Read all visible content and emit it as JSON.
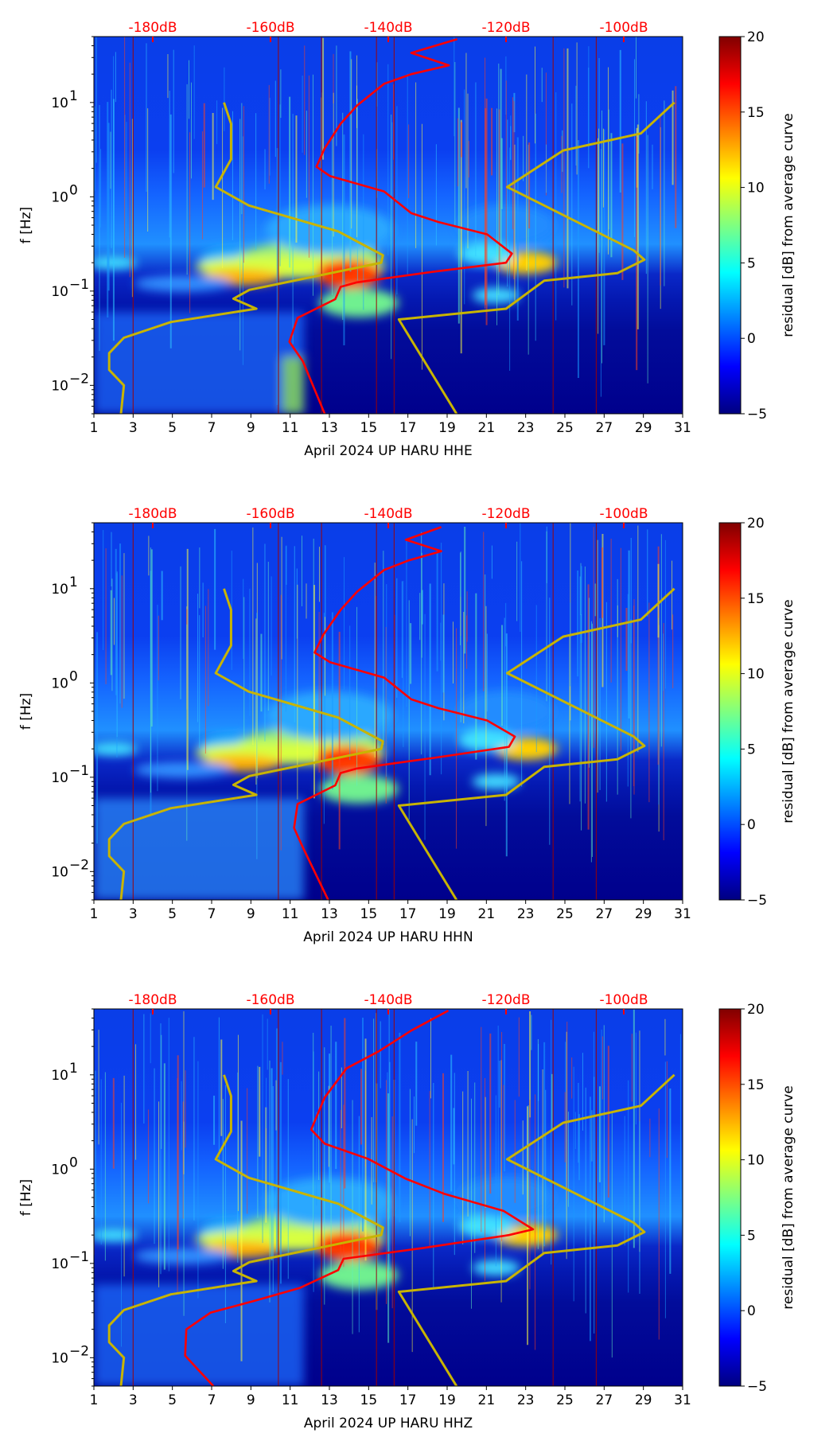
{
  "colors": {
    "nlnm": "#c8b400",
    "average": "#ff0000",
    "db_axis": "#ff0000"
  },
  "chart_data": [
    {
      "type": "heatmap",
      "title": "",
      "xlabel": "April 2024 UP HARU  HHE",
      "ylabel": "f [Hz]",
      "xlim": [
        1,
        31
      ],
      "xticks": [
        "1",
        "3",
        "5",
        "7",
        "9",
        "11",
        "13",
        "15",
        "17",
        "19",
        "21",
        "23",
        "25",
        "27",
        "29",
        "31"
      ],
      "yscale": "log",
      "ylim": [
        0.005,
        50
      ],
      "yticks": [
        {
          "value": 0.01,
          "base": "10",
          "exp": "−2"
        },
        {
          "value": 0.1,
          "base": "10",
          "exp": "−1"
        },
        {
          "value": 1,
          "base": "10",
          "exp": "0"
        },
        {
          "value": 10,
          "base": "10",
          "exp": "1"
        }
      ],
      "top_axis": {
        "unit": "dB",
        "ticks": [
          "-180dB",
          "-160dB",
          "-140dB",
          "-120dB",
          "-100dB"
        ],
        "values": [
          -180,
          -160,
          -140,
          -120,
          -100
        ]
      },
      "colorbar": {
        "label": "residual [dB] from average curve",
        "range": [
          -5,
          20
        ],
        "ticks": [
          "−5",
          "0",
          "5",
          "10",
          "15",
          "20"
        ],
        "colormap": "jet"
      },
      "series": [
        {
          "name": "low noise model",
          "points_freq_db": [
            [
              10,
              -167.9
            ],
            [
              5.96,
              -166.7
            ],
            [
              2.5,
              -166.7
            ],
            [
              1.27,
              -169.3
            ],
            [
              0.81,
              -163.7
            ],
            [
              0.43,
              -148.5
            ],
            [
              0.24,
              -140.9
            ],
            [
              0.2,
              -141.2
            ],
            [
              0.103,
              -163.6
            ],
            [
              0.083,
              -166.3
            ],
            [
              0.065,
              -162.4
            ],
            [
              0.047,
              -176.9
            ],
            [
              0.032,
              -184.9
            ],
            [
              0.022,
              -187.4
            ],
            [
              0.0146,
              -187.4
            ],
            [
              0.01,
              -184.9
            ],
            [
              0.005,
              -185.4
            ]
          ]
        },
        {
          "name": "high noise model",
          "points_freq_db": [
            [
              10,
              -91.4
            ],
            [
              4.7,
              -97.1
            ],
            [
              3.1,
              -110.3
            ],
            [
              1.27,
              -119.8
            ],
            [
              0.27,
              -98.3
            ],
            [
              0.215,
              -96.5
            ],
            [
              0.155,
              -101.1
            ],
            [
              0.129,
              -113.5
            ],
            [
              0.065,
              -120
            ],
            [
              0.05,
              -138.2
            ],
            [
              0.005,
              -128.4
            ]
          ]
        },
        {
          "name": "average curve",
          "points_freq_db": [
            [
              47,
              -128.3
            ],
            [
              33.6,
              -136.1
            ],
            [
              24.8,
              -129.7
            ],
            [
              20,
              -136.1
            ],
            [
              15.8,
              -140.7
            ],
            [
              9.3,
              -145.3
            ],
            [
              5.96,
              -148.1
            ],
            [
              3.27,
              -150.8
            ],
            [
              2.08,
              -152.2
            ],
            [
              1.66,
              -149.9
            ],
            [
              1.14,
              -140.7
            ],
            [
              0.67,
              -136.1
            ],
            [
              0.54,
              -131.5
            ],
            [
              0.4,
              -123.2
            ],
            [
              0.25,
              -119
            ],
            [
              0.2,
              -120
            ],
            [
              0.16,
              -132.4
            ],
            [
              0.124,
              -145.3
            ],
            [
              0.111,
              -148.1
            ],
            [
              0.082,
              -149
            ],
            [
              0.052,
              -155.4
            ],
            [
              0.029,
              -156.8
            ],
            [
              0.018,
              -154.5
            ],
            [
              0.005,
              -150.8
            ]
          ]
        }
      ]
    },
    {
      "type": "heatmap",
      "title": "",
      "xlabel": "April 2024 UP HARU  HHN",
      "ylabel": "f [Hz]",
      "xlim": [
        1,
        31
      ],
      "xticks": [
        "1",
        "3",
        "5",
        "7",
        "9",
        "11",
        "13",
        "15",
        "17",
        "19",
        "21",
        "23",
        "25",
        "27",
        "29",
        "31"
      ],
      "yscale": "log",
      "ylim": [
        0.005,
        50
      ],
      "yticks": [
        {
          "value": 0.01,
          "base": "10",
          "exp": "−2"
        },
        {
          "value": 0.1,
          "base": "10",
          "exp": "−1"
        },
        {
          "value": 1,
          "base": "10",
          "exp": "0"
        },
        {
          "value": 10,
          "base": "10",
          "exp": "1"
        }
      ],
      "top_axis": {
        "unit": "dB",
        "ticks": [
          "-180dB",
          "-160dB",
          "-140dB",
          "-120dB",
          "-100dB"
        ],
        "values": [
          -180,
          -160,
          -140,
          -120,
          -100
        ]
      },
      "colorbar": {
        "label": "residual [dB] from average curve",
        "range": [
          -5,
          20
        ],
        "ticks": [
          "−5",
          "0",
          "5",
          "10",
          "15",
          "20"
        ],
        "colormap": "jet"
      },
      "series": [
        {
          "name": "low noise model",
          "points_freq_db": [
            [
              10,
              -167.9
            ],
            [
              5.96,
              -166.7
            ],
            [
              2.5,
              -166.7
            ],
            [
              1.27,
              -169.3
            ],
            [
              0.81,
              -163.7
            ],
            [
              0.43,
              -148.5
            ],
            [
              0.24,
              -140.9
            ],
            [
              0.2,
              -141.2
            ],
            [
              0.103,
              -163.6
            ],
            [
              0.083,
              -166.3
            ],
            [
              0.065,
              -162.4
            ],
            [
              0.047,
              -176.9
            ],
            [
              0.032,
              -184.9
            ],
            [
              0.022,
              -187.4
            ],
            [
              0.0146,
              -187.4
            ],
            [
              0.01,
              -184.9
            ],
            [
              0.005,
              -185.4
            ]
          ]
        },
        {
          "name": "high noise model",
          "points_freq_db": [
            [
              10,
              -91.4
            ],
            [
              4.7,
              -97.1
            ],
            [
              3.1,
              -110.3
            ],
            [
              1.27,
              -119.8
            ],
            [
              0.27,
              -98.3
            ],
            [
              0.215,
              -96.5
            ],
            [
              0.155,
              -101.1
            ],
            [
              0.129,
              -113.5
            ],
            [
              0.065,
              -120
            ],
            [
              0.05,
              -138.2
            ],
            [
              0.005,
              -128.4
            ]
          ]
        },
        {
          "name": "average curve",
          "points_freq_db": [
            [
              45,
              -131
            ],
            [
              33,
              -137
            ],
            [
              25,
              -131
            ],
            [
              20,
              -136.5
            ],
            [
              15.8,
              -140.7
            ],
            [
              9.3,
              -145.3
            ],
            [
              5.96,
              -148.1
            ],
            [
              3.27,
              -151
            ],
            [
              2.1,
              -152.5
            ],
            [
              1.66,
              -149.9
            ],
            [
              1.14,
              -140.7
            ],
            [
              0.67,
              -136.1
            ],
            [
              0.54,
              -131.5
            ],
            [
              0.4,
              -123.2
            ],
            [
              0.27,
              -118.5
            ],
            [
              0.21,
              -119.5
            ],
            [
              0.16,
              -132.4
            ],
            [
              0.124,
              -145.3
            ],
            [
              0.111,
              -148.1
            ],
            [
              0.082,
              -149
            ],
            [
              0.052,
              -155.4
            ],
            [
              0.029,
              -156
            ],
            [
              0.018,
              -154.5
            ],
            [
              0.005,
              -150.2
            ]
          ]
        }
      ]
    },
    {
      "type": "heatmap",
      "title": "",
      "xlabel": "April 2024 UP HARU  HHZ",
      "ylabel": "f [Hz]",
      "xlim": [
        1,
        31
      ],
      "xticks": [
        "1",
        "3",
        "5",
        "7",
        "9",
        "11",
        "13",
        "15",
        "17",
        "19",
        "21",
        "23",
        "25",
        "27",
        "29",
        "31"
      ],
      "yscale": "log",
      "ylim": [
        0.005,
        50
      ],
      "yticks": [
        {
          "value": 0.01,
          "base": "10",
          "exp": "−2"
        },
        {
          "value": 0.1,
          "base": "10",
          "exp": "−1"
        },
        {
          "value": 1,
          "base": "10",
          "exp": "0"
        },
        {
          "value": 10,
          "base": "10",
          "exp": "1"
        }
      ],
      "top_axis": {
        "unit": "dB",
        "ticks": [
          "-180dB",
          "-160dB",
          "-140dB",
          "-120dB",
          "-100dB"
        ],
        "values": [
          -180,
          -160,
          -140,
          -120,
          -100
        ]
      },
      "colorbar": {
        "label": "residual [dB] from average curve",
        "range": [
          -5,
          20
        ],
        "ticks": [
          "−5",
          "0",
          "5",
          "10",
          "15",
          "20"
        ],
        "colormap": "jet"
      },
      "series": [
        {
          "name": "low noise model",
          "points_freq_db": [
            [
              10,
              -167.9
            ],
            [
              5.96,
              -166.7
            ],
            [
              2.5,
              -166.7
            ],
            [
              1.27,
              -169.3
            ],
            [
              0.81,
              -163.7
            ],
            [
              0.43,
              -148.5
            ],
            [
              0.24,
              -140.9
            ],
            [
              0.2,
              -141.2
            ],
            [
              0.103,
              -163.6
            ],
            [
              0.083,
              -166.3
            ],
            [
              0.065,
              -162.4
            ],
            [
              0.047,
              -176.9
            ],
            [
              0.032,
              -184.9
            ],
            [
              0.022,
              -187.4
            ],
            [
              0.0146,
              -187.4
            ],
            [
              0.01,
              -184.9
            ],
            [
              0.005,
              -185.4
            ]
          ]
        },
        {
          "name": "high noise model",
          "points_freq_db": [
            [
              10,
              -91.4
            ],
            [
              4.7,
              -97.1
            ],
            [
              3.1,
              -110.3
            ],
            [
              1.27,
              -119.8
            ],
            [
              0.27,
              -98.3
            ],
            [
              0.215,
              -96.5
            ],
            [
              0.155,
              -101.1
            ],
            [
              0.129,
              -113.5
            ],
            [
              0.065,
              -120
            ],
            [
              0.05,
              -138.2
            ],
            [
              0.005,
              -128.4
            ]
          ]
        },
        {
          "name": "average curve",
          "points_freq_db": [
            [
              48,
              -129.8
            ],
            [
              29.5,
              -136.1
            ],
            [
              17.8,
              -141.6
            ],
            [
              11.7,
              -147.1
            ],
            [
              5.75,
              -150.8
            ],
            [
              2.63,
              -153.1
            ],
            [
              1.86,
              -150.8
            ],
            [
              1.29,
              -143.5
            ],
            [
              0.79,
              -137
            ],
            [
              0.55,
              -130.6
            ],
            [
              0.36,
              -120.4
            ],
            [
              0.23,
              -115.4
            ],
            [
              0.2,
              -119.5
            ],
            [
              0.145,
              -134.3
            ],
            [
              0.112,
              -147.6
            ],
            [
              0.085,
              -148.5
            ],
            [
              0.055,
              -155
            ],
            [
              0.04,
              -162.8
            ],
            [
              0.03,
              -170.2
            ],
            [
              0.02,
              -174.3
            ],
            [
              0.0105,
              -174.5
            ],
            [
              0.005,
              -169.7
            ]
          ]
        }
      ]
    }
  ]
}
